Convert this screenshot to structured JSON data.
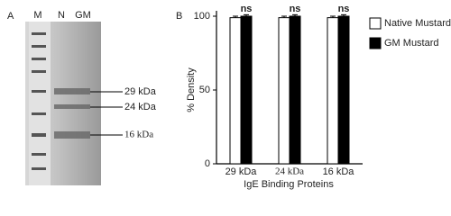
{
  "panel_a": {
    "letter": "A",
    "lanes": [
      "M",
      "N",
      "GM"
    ],
    "markers": [
      "29 kDa",
      "24 kDa",
      "16 kDa"
    ]
  },
  "chart_data": {
    "type": "bar",
    "letter": "B",
    "ylabel": "% Density",
    "xlabel": "IgE Binding Proteins",
    "categories": [
      "29 kDa",
      "24 kDa",
      "16 kDa"
    ],
    "series": [
      {
        "name": "Native Mustard",
        "color": "#ffffff",
        "values": [
          99,
          99,
          99
        ],
        "errors": [
          1,
          1,
          1
        ]
      },
      {
        "name": "GM Mustard",
        "color": "#000000",
        "values": [
          100,
          100,
          100
        ],
        "errors": [
          1,
          1,
          1
        ]
      }
    ],
    "annotations": [
      "ns",
      "ns",
      "ns"
    ],
    "ylim": [
      0,
      100
    ],
    "yticks": [
      0,
      50,
      100
    ],
    "grid": false,
    "legend": "top-right"
  }
}
